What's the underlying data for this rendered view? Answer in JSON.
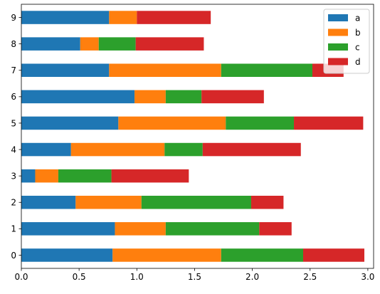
{
  "chart_data": {
    "type": "bar",
    "orientation": "horizontal",
    "stacked": true,
    "title": "",
    "xlabel": "",
    "ylabel": "",
    "categories": [
      "0",
      "1",
      "2",
      "3",
      "4",
      "5",
      "6",
      "7",
      "8",
      "9"
    ],
    "xlim": [
      0,
      3.05
    ],
    "x_ticks": [
      0.0,
      0.5,
      1.0,
      1.5,
      2.0,
      2.5,
      3.0
    ],
    "x_tick_labels": [
      "0.0",
      "0.5",
      "1.0",
      "1.5",
      "2.0",
      "2.5",
      "3.0"
    ],
    "grid": false,
    "legend_position": "top-right",
    "series": [
      {
        "name": "a",
        "color": "#1f77b4",
        "values": [
          0.79,
          0.81,
          0.47,
          0.12,
          0.43,
          0.84,
          0.98,
          0.76,
          0.51,
          0.76
        ]
      },
      {
        "name": "b",
        "color": "#ff7f0e",
        "values": [
          0.94,
          0.44,
          0.57,
          0.2,
          0.81,
          0.93,
          0.27,
          0.97,
          0.16,
          0.24
        ]
      },
      {
        "name": "c",
        "color": "#2ca02c",
        "values": [
          0.71,
          0.81,
          0.95,
          0.46,
          0.33,
          0.59,
          0.31,
          0.79,
          0.32,
          0.0
        ]
      },
      {
        "name": "d",
        "color": "#d62728",
        "values": [
          0.53,
          0.28,
          0.28,
          0.67,
          0.85,
          0.6,
          0.54,
          0.27,
          0.59,
          0.64
        ]
      }
    ]
  }
}
